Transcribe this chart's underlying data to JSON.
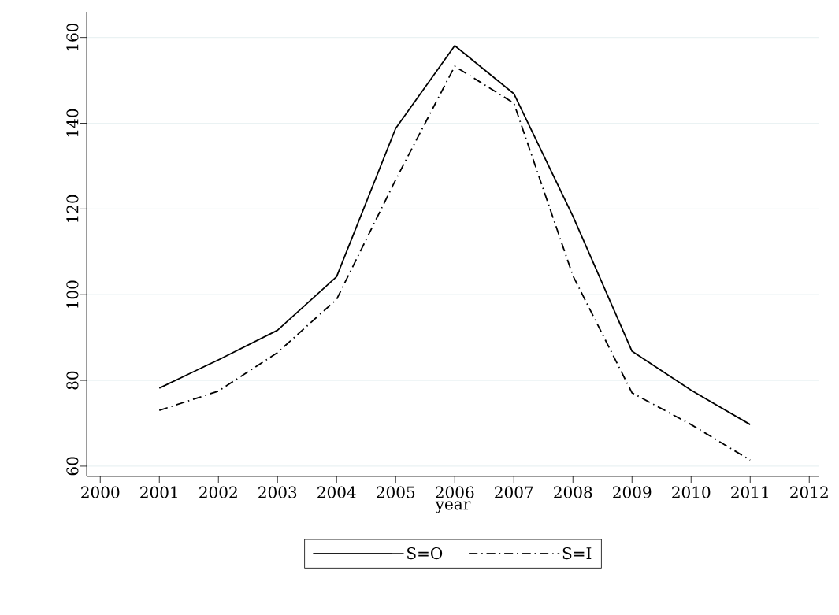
{
  "chart_data": {
    "type": "line",
    "xlabel": "year",
    "x": [
      2001,
      2002,
      2003,
      2004,
      2005,
      2006,
      2007,
      2008,
      2009,
      2010,
      2011
    ],
    "series": [
      {
        "name": "S=O",
        "color": "#000000",
        "line_style": "solid",
        "values": [
          78.2,
          84.8,
          91.7,
          104.2,
          138.8,
          158.1,
          146.9,
          118.3,
          86.8,
          77.7,
          69.7
        ]
      },
      {
        "name": "S=I",
        "color": "#000000",
        "line_style": "dashdot",
        "values": [
          73.0,
          77.5,
          86.5,
          98.9,
          126.8,
          153.3,
          144.7,
          104.4,
          77.1,
          69.7,
          61.4
        ]
      }
    ],
    "xlim": [
      1999.77,
      2012.17
    ],
    "ylim": [
      57.6,
      166
    ],
    "xticks": [
      2000,
      2001,
      2002,
      2003,
      2004,
      2005,
      2006,
      2007,
      2008,
      2009,
      2010,
      2011,
      2012
    ],
    "yticks": [
      60,
      80,
      100,
      120,
      140,
      160
    ],
    "grid": "y",
    "legend": "bottom"
  }
}
